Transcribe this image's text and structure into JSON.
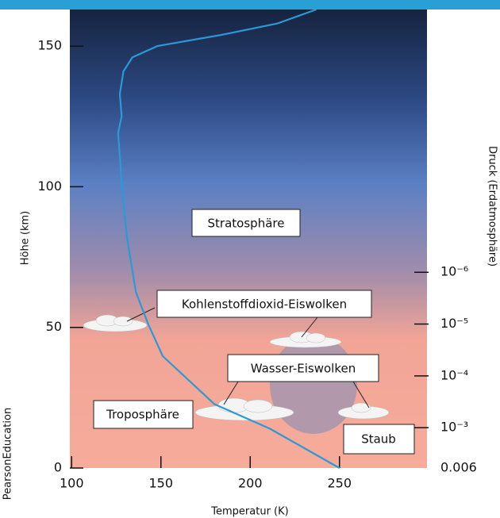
{
  "chart_data": {
    "type": "line",
    "x_label": "Temperatur (K)",
    "y_label": "Höhe (km)",
    "y2_label": "Druck (Erdatmosphäre)",
    "credit": "PearsonEducation",
    "x": [
      250,
      211,
      180,
      151,
      143,
      136,
      131,
      128,
      127,
      126,
      128,
      127,
      129,
      134,
      148,
      184,
      215,
      237
    ],
    "series": [
      {
        "color": "#2a9ad6",
        "values": [
          0,
          14,
          22.7,
          39.8,
          51,
          62.5,
          82,
          101,
          111,
          119,
          125,
          133,
          141,
          146,
          150,
          154,
          158,
          163
        ]
      }
    ],
    "xlim": [
      99,
      299
    ],
    "xticks": [
      100,
      150,
      200,
      250
    ],
    "ylim": [
      0,
      163
    ],
    "yticks": [
      0,
      50,
      100,
      150
    ],
    "y2log": true,
    "y2lim": [
      0.006,
      8.5e-12
    ],
    "y2ticks": [
      0.006,
      {
        "value": 0.001,
        "label": "10⁻³"
      },
      {
        "value": 0.0001,
        "label": "10⁻⁴"
      },
      {
        "value": 1e-05,
        "label": "10⁻⁵"
      },
      {
        "value": 1e-06,
        "label": "10⁻⁶"
      }
    ],
    "annotations": [
      "Stratosphäre",
      "Kohlenstoffdioxid-Eiswolken",
      "Wasser-Eiswolken",
      "Troposphäre",
      "Staub"
    ]
  }
}
